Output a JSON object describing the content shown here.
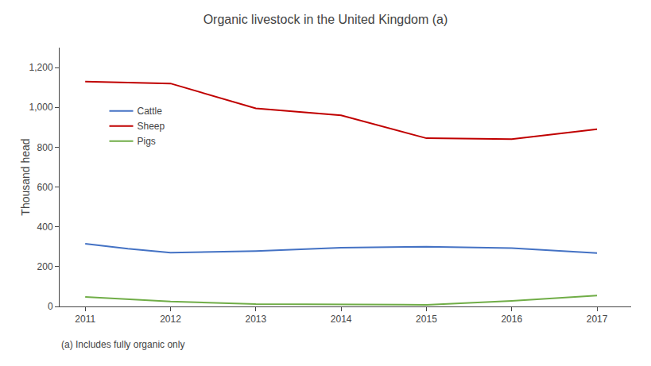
{
  "chart_data": {
    "type": "line",
    "title": "Organic livestock in the United Kingdom (a)",
    "y_label": "Thousand head",
    "annotations": [
      "(a) Includes fully organic only"
    ],
    "x": [
      2011,
      2011.5,
      2012,
      2013,
      2014,
      2015,
      2016,
      2017
    ],
    "series": [
      {
        "name": "Cattle",
        "color": "#4472C4",
        "values": [
          315,
          290,
          270,
          278,
          295,
          300,
          293,
          268
        ]
      },
      {
        "name": "Sheep",
        "color": "#C00000",
        "values": [
          1130,
          1125,
          1120,
          995,
          960,
          845,
          840,
          890
        ]
      },
      {
        "name": "Pigs",
        "color": "#70AD47",
        "values": [
          48,
          35,
          25,
          12,
          10,
          8,
          28,
          55
        ]
      }
    ],
    "xlim": [
      2010.7,
      2017.4
    ],
    "xticks": [
      2011,
      2012,
      2013,
      2014,
      2015,
      2016,
      2017
    ],
    "ylim": [
      0,
      1300
    ],
    "yticks": [
      0,
      200,
      400,
      600,
      800,
      {
        "value": 1000,
        "label": "1,000"
      },
      {
        "value": 1200,
        "label": "1,200"
      }
    ],
    "grid": false,
    "legend": "upper left"
  }
}
